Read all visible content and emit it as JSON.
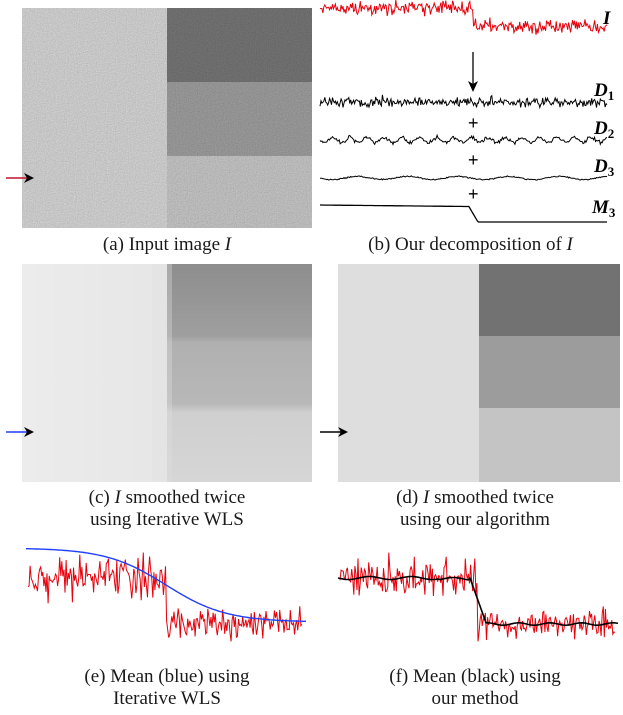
{
  "captions": {
    "a_prefix": "(a) Input image ",
    "a_var": "I",
    "b_prefix": "(b) Our decomposition of ",
    "b_var": "I",
    "c_line1_prefix": "(c) ",
    "c_line1_var": "I",
    "c_line1_suffix": " smoothed twice",
    "c_line2": "using Iterative WLS",
    "d_line1_prefix": "(d) ",
    "d_line1_var": "I",
    "d_line1_suffix": " smoothed twice",
    "d_line2": "using our algorithm",
    "e_line1": "(e) Mean (blue) using",
    "e_line2": "Iterative WLS",
    "f_line1": "(f) Mean (black) using",
    "f_line2": "our method"
  },
  "decomposition": {
    "signal_label": "I",
    "detail_labels": [
      {
        "name": "D",
        "sub": "1"
      },
      {
        "name": "D",
        "sub": "2"
      },
      {
        "name": "D",
        "sub": "3"
      }
    ],
    "mean_label": {
      "name": "M",
      "sub": "3"
    },
    "plus": "+"
  },
  "colors": {
    "signal": "#e8000b",
    "wls_mean": "#1f3fff",
    "our_mean": "#000000",
    "arrow_a": "#c0142a",
    "arrow_c": "#1f3fff",
    "arrow_d": "#000000"
  },
  "icons": [
    "row-arrow-icon",
    "down-arrow-icon",
    "plus-icon"
  ]
}
